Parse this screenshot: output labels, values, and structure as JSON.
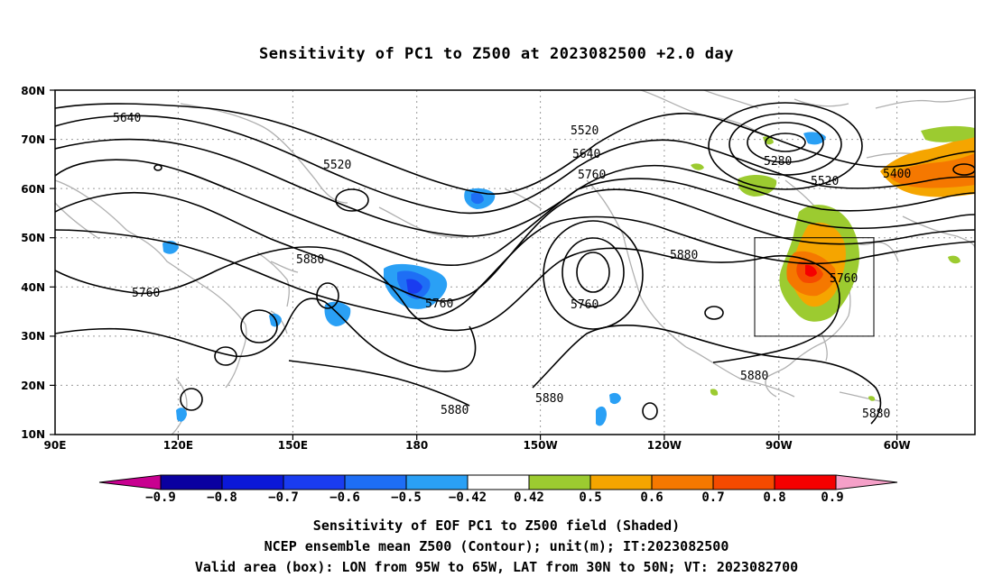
{
  "title": "Sensitivity of PC1 to Z500 at 2023082500 +2.0 day",
  "lat_labels": [
    "80N",
    "70N",
    "60N",
    "50N",
    "40N",
    "30N",
    "20N",
    "10N"
  ],
  "lon_labels": [
    "90E",
    "120E",
    "150E",
    "180",
    "150W",
    "120W",
    "90W",
    "60W"
  ],
  "contour_labels": [
    {
      "id": "c1",
      "text": "5640"
    },
    {
      "id": "c2",
      "text": "5520"
    },
    {
      "id": "c3",
      "text": "5520"
    },
    {
      "id": "c4",
      "text": "5640"
    },
    {
      "id": "c5",
      "text": "5760"
    },
    {
      "id": "c6",
      "text": "5280"
    },
    {
      "id": "c7",
      "text": "5400"
    },
    {
      "id": "c8",
      "text": "5520"
    },
    {
      "id": "c9",
      "text": "5880"
    },
    {
      "id": "c10",
      "text": "5760"
    },
    {
      "id": "c11",
      "text": "5760"
    },
    {
      "id": "c12",
      "text": "5760"
    },
    {
      "id": "c13",
      "text": "5880"
    },
    {
      "id": "c14",
      "text": "5760"
    },
    {
      "id": "c15",
      "text": "5880"
    },
    {
      "id": "c16",
      "text": "5880"
    },
    {
      "id": "c17",
      "text": "5880"
    },
    {
      "id": "c18",
      "text": "5880"
    }
  ],
  "colorbar": {
    "labels": [
      "−0.9",
      "−0.8",
      "−0.7",
      "−0.6",
      "−0.5",
      "−0.42",
      "0.42",
      "0.5",
      "0.6",
      "0.7",
      "0.8",
      "0.9"
    ],
    "colors": [
      "#0a00a0",
      "#0b18d8",
      "#1a3cf0",
      "#1e6ef5",
      "#2aa0f5",
      "#ffffff",
      "#9ccb30",
      "#f5a500",
      "#f57800",
      "#f54a00",
      "#f50000"
    ],
    "low_color": "#c80090",
    "high_color": "#f5a0c8"
  },
  "captions": [
    "Sensitivity of EOF PC1 to Z500 field (Shaded)",
    "NCEP ensemble mean Z500 (Contour); unit(m); IT:2023082500",
    "Valid area (box): LON from 95W to 65W, LAT from 30N to 50N; VT: 2023082700"
  ]
}
